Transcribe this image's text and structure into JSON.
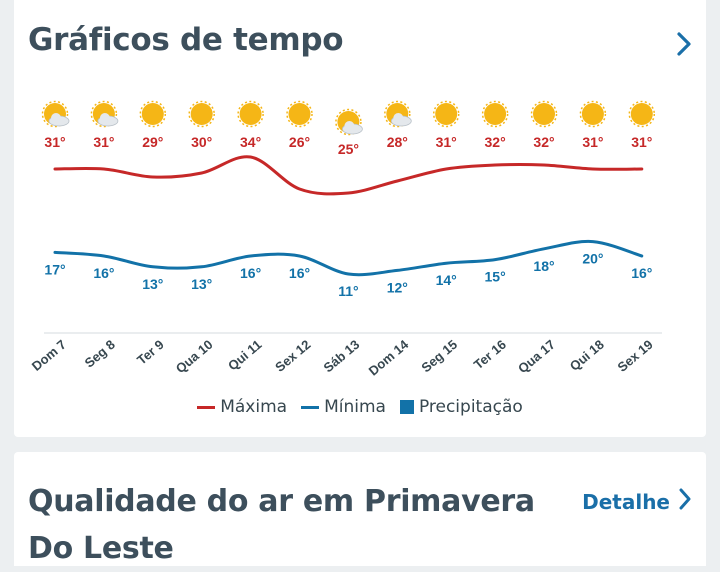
{
  "weather_card": {
    "title": "Gráficos de tempo"
  },
  "air_card": {
    "title": "Qualidade do ar em Primavera Do Leste",
    "link_label": "Detalhe"
  },
  "colors": {
    "max": "#c62828",
    "min": "#1272a8",
    "precip": "#1272a8",
    "title": "#3d4f5c",
    "link": "#1a6fa8"
  },
  "chart_data": {
    "type": "line",
    "categories": [
      "Dom 7",
      "Seg 8",
      "Ter 9",
      "Qua 10",
      "Qui 11",
      "Sex 12",
      "Sáb 13",
      "Dom 14",
      "Seg 15",
      "Ter 16",
      "Qua 17",
      "Qui 18",
      "Sex 19"
    ],
    "icons": [
      "sun-cloud-icon",
      "sun-cloud-icon",
      "sun-icon",
      "sun-icon",
      "sun-icon",
      "sun-icon",
      "sun-cloud-icon",
      "sun-cloud-icon",
      "sun-icon",
      "sun-icon",
      "sun-icon",
      "sun-icon",
      "sun-icon"
    ],
    "series": [
      {
        "name": "Máxima",
        "values": [
          31,
          31,
          29,
          30,
          34,
          26,
          25,
          28,
          31,
          32,
          32,
          31,
          31
        ]
      },
      {
        "name": "Mínima",
        "values": [
          17,
          16,
          13,
          13,
          16,
          16,
          11,
          12,
          14,
          15,
          18,
          20,
          16
        ]
      }
    ],
    "value_labels_max": [
      "31°",
      "31°",
      "29°",
      "30°",
      "34°",
      "26°",
      "25°",
      "28°",
      "31°",
      "32°",
      "32°",
      "31°",
      "31°"
    ],
    "value_labels_min": [
      "17°",
      "16°",
      "13°",
      "13°",
      "16°",
      "16°",
      "11°",
      "12°",
      "14°",
      "15°",
      "18°",
      "20°",
      "16°"
    ],
    "legend": [
      "Máxima",
      "Mínima",
      "Precipitação"
    ],
    "legend_position": "bottom"
  }
}
